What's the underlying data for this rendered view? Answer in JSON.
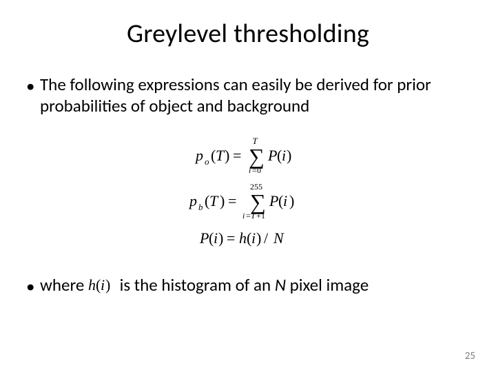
{
  "title": "Greylevel thresholding",
  "bullet1": "The following expressions can easily be derived for prior probabilities of object and background",
  "bullet2_pre": "where  ",
  "bullet2_post": "is the histogram of an ",
  "bullet2_N": "N",
  "bullet2_tail": " pixel image",
  "page_number": "25",
  "eq": {
    "po_lhs": "p",
    "po_sub": "o",
    "T": "T",
    "sum_i0": "i",
    "eq_zero": "0",
    "P": "P",
    "i_var": "i",
    "pb_sub": "b",
    "upper_255": "255",
    "lower_Tp1_a": "i",
    "lower_Tp1_b": "T",
    "lower_Tp1_c": "1",
    "Pi_eq_hi": "h",
    "slash_N": "N"
  },
  "colors": {
    "text": "#000000",
    "pagenum": "#808080",
    "background": "#ffffff"
  }
}
